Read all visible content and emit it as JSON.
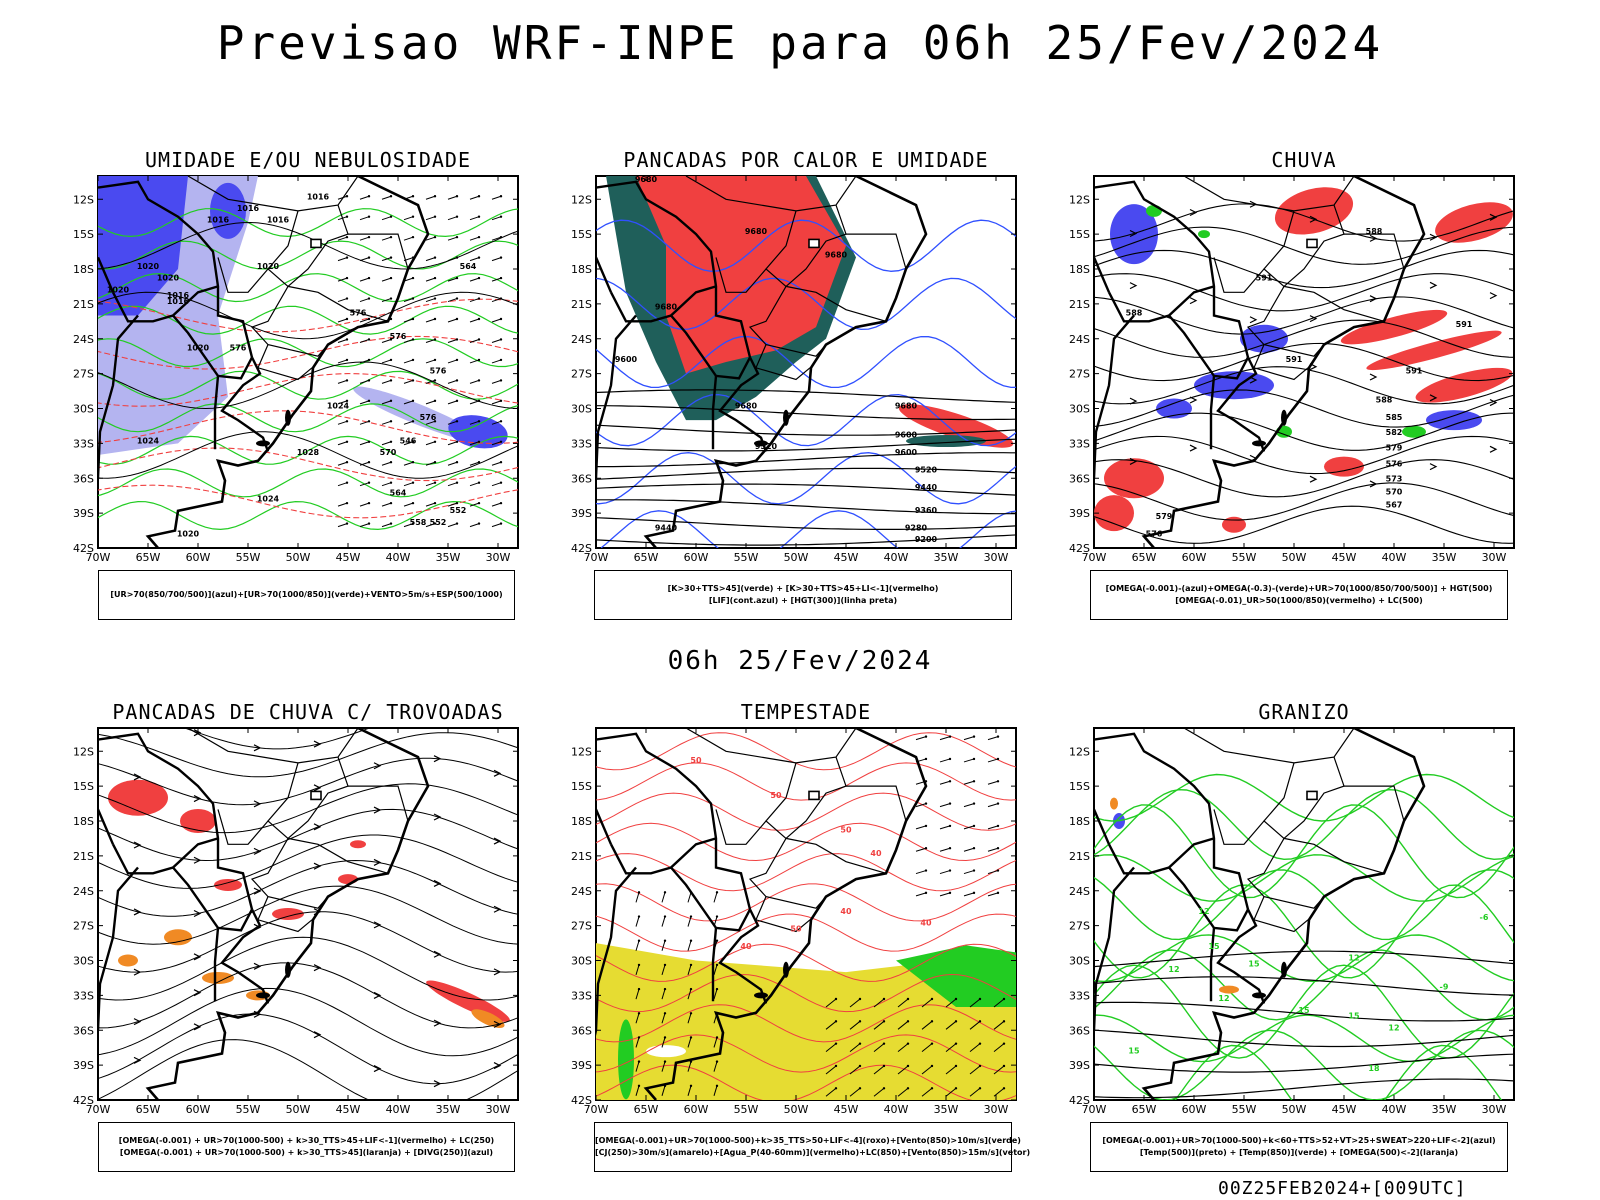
{
  "main_title": "Previsao WRF-INPE  para 06h 25/Fev/2024",
  "mid_time": "06h 25/Fev/2024",
  "footer": "00Z25FEB2024+[009UTC]",
  "lat_labels": [
    "12S",
    "15S",
    "18S",
    "21S",
    "24S",
    "27S",
    "30S",
    "33S",
    "36S",
    "39S",
    "42S"
  ],
  "lon_labels": [
    "70W",
    "65W",
    "60W",
    "55W",
    "50W",
    "45W",
    "40W",
    "35W",
    "30W"
  ],
  "colors": {
    "blue": "#4a4af0",
    "lightblue": "#b4b4f0",
    "green": "#22cc22",
    "red": "#f04040",
    "darkteal": "#1f5f5a",
    "orange": "#f08a24",
    "yellow": "#e6dc32",
    "black": "#000000"
  },
  "panels": [
    {
      "title": "UMIDADE E/OU NEBULOSIDADE",
      "legend": [
        "[UR>70(850/700/500)](azul)+[UR>70(1000/850)](verde)+VENTO>5m/s+ESP(500/1000)"
      ],
      "contour_labels": [
        "1016",
        "1016",
        "1016",
        "1016",
        "1020",
        "1016",
        "1016",
        "1020",
        "1020",
        "1020",
        "1020",
        "1024",
        "1024",
        "1028",
        "1024",
        "1020",
        "576",
        "576",
        "576",
        "576",
        "570",
        "564",
        "558",
        "552",
        "546",
        "564",
        "576",
        "552"
      ]
    },
    {
      "title": "PANCADAS POR CALOR E UMIDADE",
      "legend": [
        "[K>30+TTS>45](verde) + [K>30+TTS>45+LI<-1](vermelho)",
        "[LIF](cont.azul) + [HGT(300)](linha preta)"
      ],
      "contour_labels": [
        "9680",
        "9680",
        "9680",
        "9680",
        "9600",
        "9680",
        "9680",
        "9600",
        "9520",
        "9600",
        "9520",
        "9440",
        "9360",
        "9280",
        "9200",
        "9440"
      ]
    },
    {
      "title": "CHUVA",
      "legend": [
        "[OMEGA(-0.001)-(azul)+OMEGA(-0.3)-(verde)+UR>70(1000/850/700/500)] + HGT(500)",
        "[OMEGA(-0.01)_UR>50(1000/850)(vermelho) + LC(500)"
      ],
      "contour_labels": [
        "588",
        "591",
        "591",
        "591",
        "591",
        "588",
        "585",
        "582",
        "579",
        "576",
        "573",
        "570",
        "567",
        "579",
        "576",
        "588"
      ]
    },
    {
      "title": "PANCADAS DE CHUVA C/ TROVOADAS",
      "legend": [
        "[OMEGA(-0.001) + UR>70(1000-500) + k>30_TTS>45+LIF<-1](vermelho) + LC(250)",
        "[OMEGA(-0.001) + UR>70(1000-500) + k>30_TTS>45](laranja) + [DIVG(250)](azul)"
      ],
      "contour_labels": []
    },
    {
      "title": "TEMPESTADE",
      "legend": [
        "[OMEGA(-0.001)+UR>70(1000-500)+k>35_TTS>50+LIF<-4](roxo)+[Vento(850)>10m/s](verde)",
        "[CJ(250)>30m/s](amarelo)+[Agua_P(40-60mm)](vermelho)+LC(850)+[Vento(850)>15m/s](vetor)"
      ],
      "contour_labels": [
        "50",
        "50",
        "50",
        "40",
        "40",
        "50",
        "40",
        "40"
      ]
    },
    {
      "title": "GRANIZO",
      "legend": [
        "[OMEGA(-0.001)+UR>70(1000-500)+k<60+TTS>52+VT>25+SWEAT>220+LIF<-2](azul)",
        "[Temp(500)](preto) + [Temp(850)](verde) + [OMEGA(500)<-2](laranja)"
      ],
      "contour_labels": [
        "12",
        "15",
        "-6",
        "-9",
        "12",
        "15",
        "12",
        "18",
        "15",
        "15",
        "12",
        "12",
        "15"
      ]
    }
  ]
}
